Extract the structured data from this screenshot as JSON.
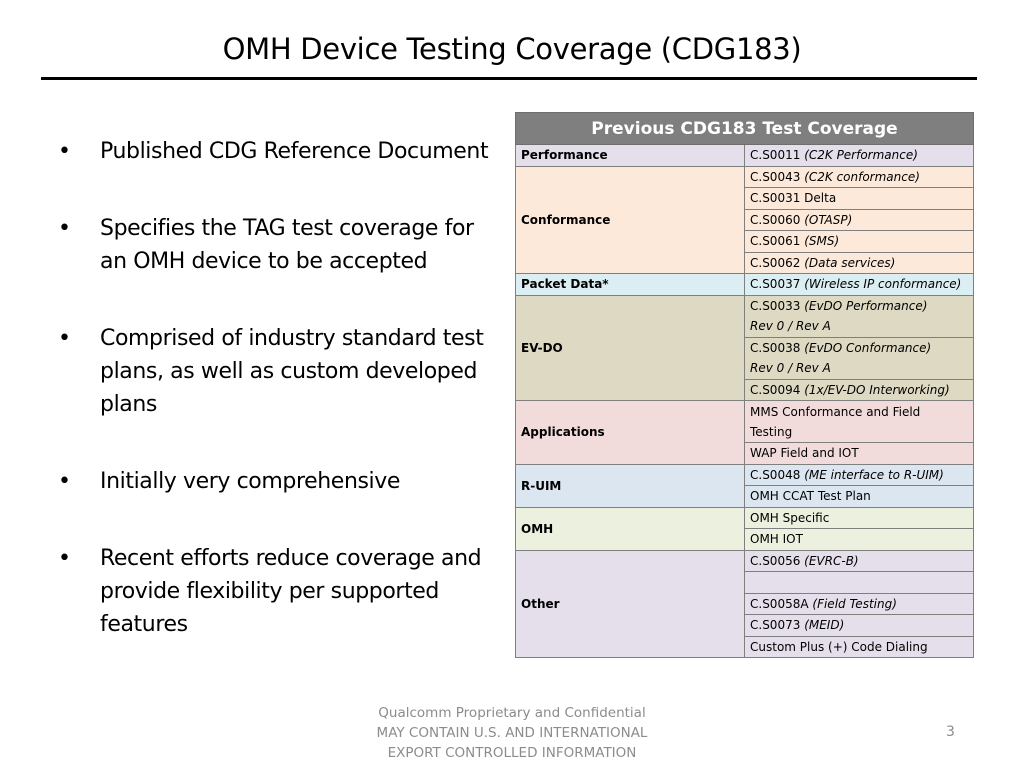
{
  "slide": {
    "title": "OMH Device Testing Coverage (CDG183)",
    "bullets": [
      "Published CDG Reference Document",
      "Specifies the TAG test coverage for an OMH device to be accepted",
      "Comprised of industry standard test plans, as well as custom developed plans",
      "Initially very comprehensive",
      "Recent efforts reduce coverage and provide flexibility per supported features"
    ],
    "bullet_glyph": "•"
  },
  "table": {
    "header": "Previous CDG183 Test Coverage",
    "groups": [
      {
        "category": "Performance",
        "color": "#e5dfec",
        "items": [
          {
            "code": "C.S0011",
            "desc": "(C2K Performance)"
          }
        ]
      },
      {
        "category": "Conformance",
        "color": "#fde9d9",
        "items": [
          {
            "code": "C.S0043",
            "desc": "(C2K conformance)"
          },
          {
            "code": "C.S0031 Delta",
            "desc": ""
          },
          {
            "code": "C.S0060",
            "desc": "(OTASP)"
          },
          {
            "code": "C.S0061",
            "desc": "(SMS)"
          },
          {
            "code": "C.S0062",
            "desc": "(Data services)"
          }
        ]
      },
      {
        "category": "Packet Data*",
        "color": "#dbeef3",
        "items": [
          {
            "code": "C.S0037",
            "desc": "(Wireless IP conformance)"
          }
        ]
      },
      {
        "category": "EV-DO",
        "color": "#ddd9c3",
        "items": [
          {
            "code": "C.S0033",
            "desc": "(EvDO Performance)",
            "line2": "Rev 0 / Rev A"
          },
          {
            "code": "C.S0038",
            "desc": "(EvDO  Conformance)",
            "line2": "Rev 0 / Rev A"
          },
          {
            "code": "C.S0094",
            "desc": "(1x/EV-DO Interworking)"
          }
        ]
      },
      {
        "category": "Applications",
        "color": "#f2dcdb",
        "items": [
          {
            "code": "MMS Conformance and Field",
            "desc": "",
            "line2plain": "Testing"
          },
          {
            "code": "WAP Field and IOT",
            "desc": ""
          }
        ]
      },
      {
        "category": "R-UIM",
        "color": "#dce6f1",
        "items": [
          {
            "code": "C.S0048",
            "desc": "(ME interface to R-UIM)"
          },
          {
            "code": "OMH CCAT Test Plan",
            "desc": ""
          }
        ]
      },
      {
        "category": "OMH",
        "color": "#ebf1de",
        "items": [
          {
            "code": "OMH Specific",
            "desc": ""
          },
          {
            "code": "OMH IOT",
            "desc": ""
          }
        ]
      },
      {
        "category": "Other",
        "color": "#e5dfec",
        "items": [
          {
            "code": "C.S0056 ",
            "desc": "(EVRC-B)"
          },
          {
            "code": "",
            "desc": ""
          },
          {
            "code": "C.S0058A",
            "desc": "(Field Testing)"
          },
          {
            "code": "C.S0073",
            "desc": "(MEID)"
          },
          {
            "code": "Custom Plus (+) Code Dialing",
            "desc": ""
          }
        ]
      }
    ]
  },
  "footer": {
    "lines": [
      "Qualcomm Proprietary and Confidential",
      "MAY CONTAIN U.S. AND INTERNATIONAL",
      "EXPORT CONTROLLED INFORMATION"
    ],
    "page_number": "3"
  }
}
